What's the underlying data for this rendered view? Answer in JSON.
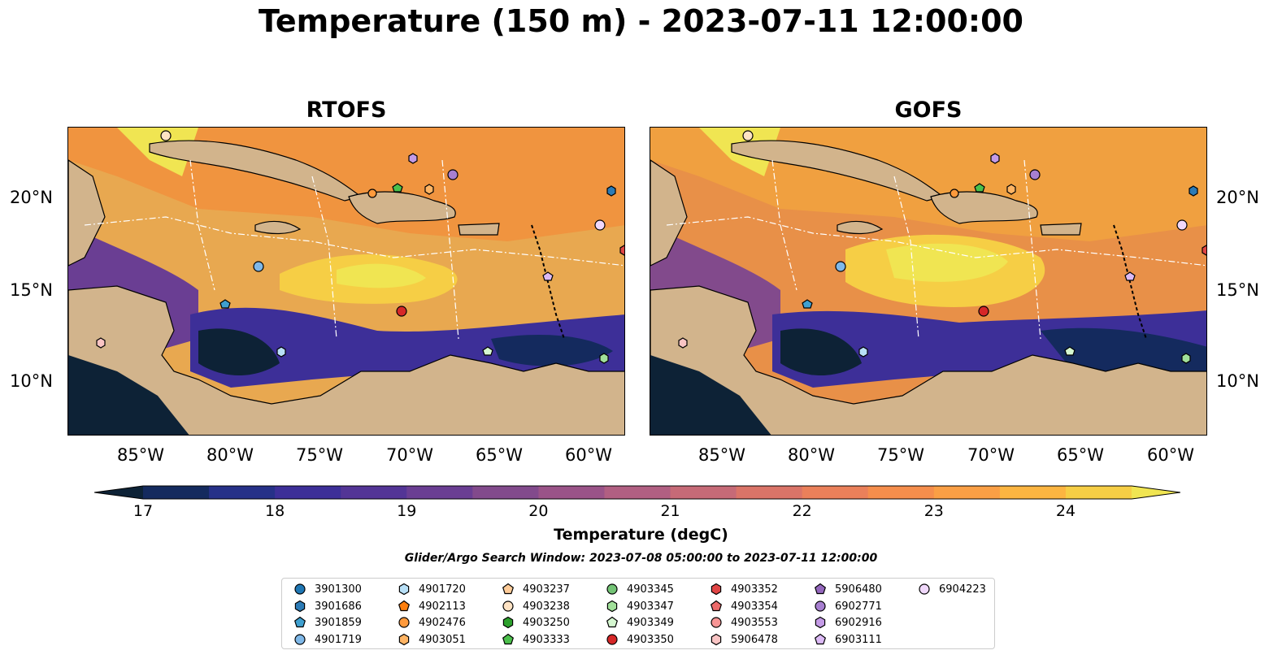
{
  "title": "Temperature (150 m) - 2023-07-11 12:00:00",
  "panels": [
    {
      "title": "RTOFS"
    },
    {
      "title": "GOFS"
    }
  ],
  "lat_ticks": [
    "20°N",
    "15°N",
    "10°N"
  ],
  "lon_ticks": [
    "85°W",
    "80°W",
    "75°W",
    "70°W",
    "65°W",
    "60°W"
  ],
  "colorbar": {
    "label": "Temperature (degC)",
    "ticks": [
      "17",
      "18",
      "19",
      "20",
      "21",
      "22",
      "23",
      "24"
    ],
    "range": [
      17,
      24.5
    ],
    "colors": [
      "#0d2236",
      "#142a5e",
      "#263188",
      "#3d2f98",
      "#533596",
      "#6a3e93",
      "#824a8c",
      "#9a5388",
      "#b15f82",
      "#c66a77",
      "#da7468",
      "#ea805a",
      "#f58e4c",
      "#fa9f45",
      "#fcb541",
      "#f6ce45",
      "#f0e552"
    ]
  },
  "search_window": "Glider/Argo Search Window: 2023-07-08 05:00:00 to 2023-07-11 12:00:00",
  "legend": [
    {
      "label": "3901300",
      "marker": "circle",
      "color": "#1f77b4"
    },
    {
      "label": "3901686",
      "marker": "hexagon",
      "color": "#2c7bb6"
    },
    {
      "label": "3901859",
      "marker": "pentagon",
      "color": "#3fa0d0"
    },
    {
      "label": "4901719",
      "marker": "circle",
      "color": "#7fb8e8"
    },
    {
      "label": "4901720",
      "marker": "hexagon",
      "color": "#b8e0f7"
    },
    {
      "label": "4902113",
      "marker": "pentagon",
      "color": "#ff7f0e"
    },
    {
      "label": "4902476",
      "marker": "circle",
      "color": "#ff9a3c"
    },
    {
      "label": "4903051",
      "marker": "hexagon",
      "color": "#ffb463"
    },
    {
      "label": "4903237",
      "marker": "pentagon",
      "color": "#ffcc99"
    },
    {
      "label": "4903238",
      "marker": "circle",
      "color": "#ffe3c4"
    },
    {
      "label": "4903250",
      "marker": "hexagon",
      "color": "#2ca02c"
    },
    {
      "label": "4903333",
      "marker": "pentagon",
      "color": "#4cc04c"
    },
    {
      "label": "4903345",
      "marker": "circle",
      "color": "#74c476"
    },
    {
      "label": "4903347",
      "marker": "hexagon",
      "color": "#a1e09a"
    },
    {
      "label": "4903349",
      "marker": "pentagon",
      "color": "#d5f7d0"
    },
    {
      "label": "4903350",
      "marker": "circle",
      "color": "#d62728"
    },
    {
      "label": "4903352",
      "marker": "hexagon",
      "color": "#e04545"
    },
    {
      "label": "4903354",
      "marker": "pentagon",
      "color": "#ec6a6a"
    },
    {
      "label": "4903553",
      "marker": "circle",
      "color": "#f79595"
    },
    {
      "label": "5906478",
      "marker": "hexagon",
      "color": "#f9c4c4"
    },
    {
      "label": "5906480",
      "marker": "pentagon",
      "color": "#9467bd"
    },
    {
      "label": "6902771",
      "marker": "circle",
      "color": "#a77fd0"
    },
    {
      "label": "6902916",
      "marker": "hexagon",
      "color": "#c49be6"
    },
    {
      "label": "6903111",
      "marker": "pentagon",
      "color": "#dcbaf5"
    },
    {
      "label": "6904223",
      "marker": "circle",
      "color": "#f0d8fb"
    }
  ],
  "colors": {
    "land": "#d2b48c",
    "shelf_water": "#8fb0de",
    "deep_cold": "#0d2236"
  }
}
